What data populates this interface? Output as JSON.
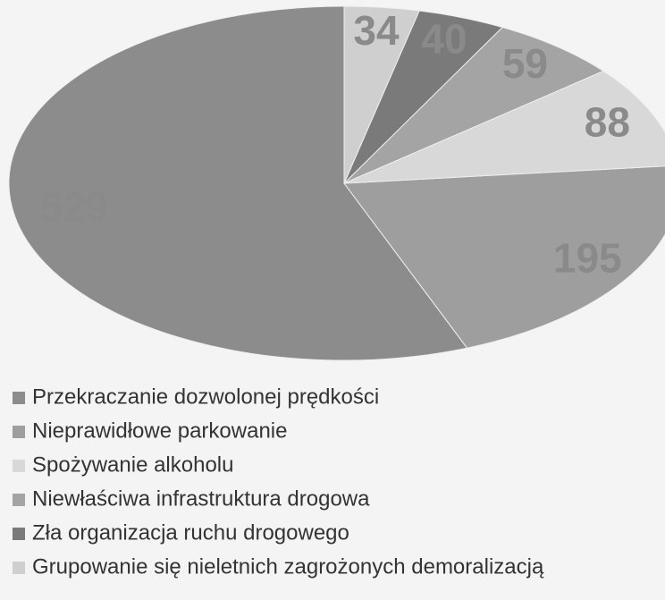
{
  "chart_data": {
    "type": "pie",
    "categories": [
      "Przekraczanie dozwolonej prędkości",
      "Nieprawidłowe parkowanie",
      "Spożywanie alkoholu",
      "Niewłaściwa infrastruktura drogowa",
      "Zła organizacja ruchu drogowego",
      "Grupowanie się nieletnich zagrożonych demoralizacją"
    ],
    "values": [
      529,
      195,
      88,
      59,
      40,
      34
    ],
    "colors": [
      "#8c8c8c",
      "#9e9e9e",
      "#d8d8d8",
      "#a4a4a4",
      "#7a7a7a",
      "#cfcfcf"
    ]
  }
}
